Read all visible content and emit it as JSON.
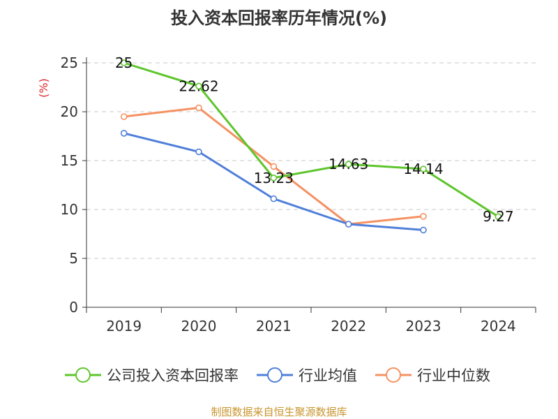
{
  "chart_data": {
    "type": "line",
    "title": "投入资本回报率历年情况(%)",
    "ylabel": "(%)",
    "xlabel": "",
    "categories": [
      "2019",
      "2020",
      "2021",
      "2022",
      "2023",
      "2024"
    ],
    "ylim": [
      0,
      25
    ],
    "yticks": [
      0,
      5,
      10,
      15,
      20,
      25
    ],
    "grid": true,
    "legend_position": "bottom",
    "series": [
      {
        "name": "公司投入资本回报率",
        "color": "#5ec52b",
        "values": [
          25,
          22.62,
          13.23,
          14.63,
          14.14,
          9.27
        ],
        "labels": [
          "25",
          "22.62",
          "13.23",
          "14.63",
          "14.14",
          "9.27"
        ]
      },
      {
        "name": "行业均值",
        "color": "#4f7fd9",
        "values": [
          17.8,
          15.9,
          11.1,
          8.5,
          7.9,
          null
        ]
      },
      {
        "name": "行业中位数",
        "color": "#f59162",
        "values": [
          19.5,
          20.4,
          14.4,
          8.5,
          9.3,
          null
        ]
      }
    ]
  },
  "source": {
    "text": "制图数据来自恒生聚源数据库",
    "color": "#c8962f"
  },
  "colors": {
    "axis": "#333333",
    "grid": "#c8c8c8",
    "ylabel": "#d9262b"
  }
}
